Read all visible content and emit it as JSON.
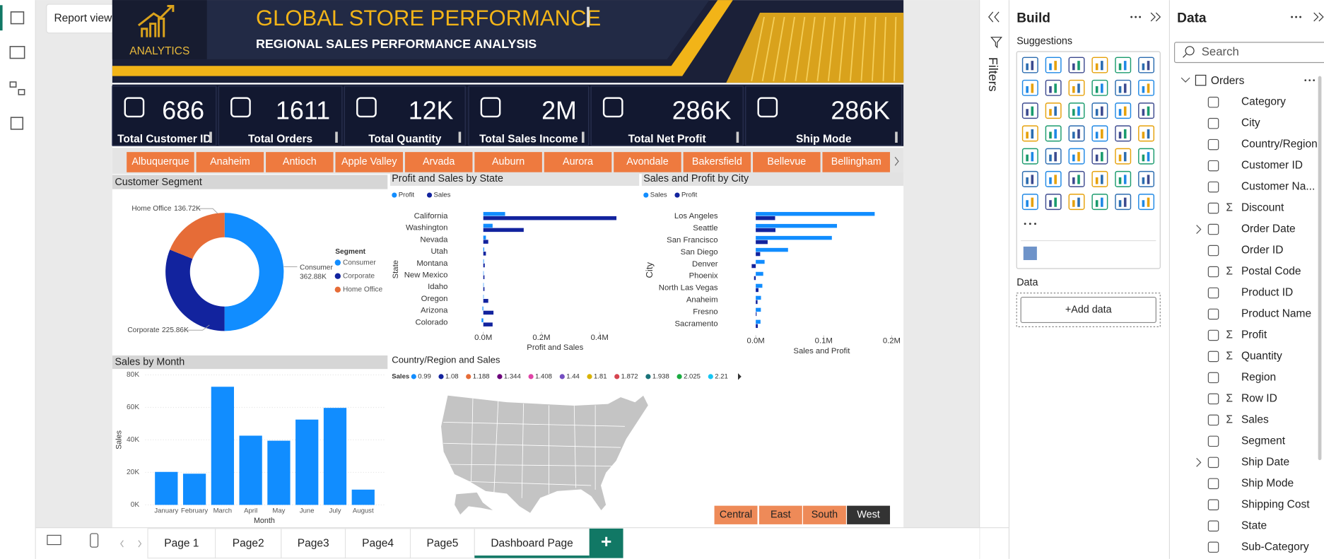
{
  "app": {
    "tooltip": "Report view",
    "filters_label": "Filters"
  },
  "header": {
    "logo_text": "ANALYTICS",
    "title": "GLOBAL STORE PERFORMANCE",
    "subtitle": "REGIONAL SALES PERFORMANCE ANALYSIS"
  },
  "kpis": [
    {
      "value": "686",
      "label": "Total Customer ID"
    },
    {
      "value": "1611",
      "label": "Total Orders"
    },
    {
      "value": "12K",
      "label": "Total Quantity"
    },
    {
      "value": "2M",
      "label": "Total Sales Income"
    },
    {
      "value": "286K",
      "label": "Total Net Profit"
    },
    {
      "value": "286K",
      "label": "Ship Mode"
    }
  ],
  "city_slicer": {
    "items": [
      "Albuquerque",
      "Anaheim",
      "Antioch",
      "Apple Valley",
      "Arvada",
      "Auburn",
      "Aurora",
      "Avondale",
      "Bakersfield",
      "Bellevue",
      "Bellingham"
    ]
  },
  "customer_segment": {
    "type": "donut",
    "title": "Customer Segment",
    "legend_title": "Segment",
    "categories": [
      "Consumer",
      "Corporate",
      "Home Office"
    ],
    "values": [
      362880,
      225860,
      136720
    ],
    "value_labels": [
      "362.88K",
      "225.86K",
      "136.72K"
    ],
    "colors": [
      "#118DFF",
      "#12239E",
      "#E66C37"
    ]
  },
  "profit_sales_by_state": {
    "type": "bar",
    "orientation": "horizontal",
    "title": "Profit and Sales by State",
    "x_label": "Profit and Sales",
    "y_label": "State",
    "categories": [
      "California",
      "Washington",
      "Nevada",
      "Utah",
      "Montana",
      "New Mexico",
      "Idaho",
      "Oregon",
      "Arizona",
      "Colorado"
    ],
    "series": [
      {
        "name": "Profit",
        "color": "#118DFF",
        "values": [
          75000,
          32000,
          9000,
          3000,
          2000,
          1000,
          1000,
          1000,
          -3000,
          -6000
        ]
      },
      {
        "name": "Sales",
        "color": "#12239E",
        "values": [
          458000,
          139000,
          17000,
          9000,
          5000,
          4000,
          4000,
          17000,
          35000,
          32000
        ]
      }
    ],
    "xlim": [
      -6000,
      500000
    ],
    "xticks": [
      {
        "value": 0,
        "label": "0.0M"
      },
      {
        "value": 200000,
        "label": "0.2M"
      },
      {
        "value": 400000,
        "label": "0.4M"
      }
    ]
  },
  "sales_profit_by_city": {
    "type": "bar",
    "orientation": "horizontal",
    "title": "Sales and Profit by City",
    "x_label": "Sales and Profit",
    "y_label": "City",
    "categories": [
      "Los Angeles",
      "Seattle",
      "San Francisco",
      "San Diego",
      "Denver",
      "Phoenix",
      "North Las Vegas",
      "Anaheim",
      "Fresno",
      "Sacramento"
    ],
    "series": [
      {
        "name": "Sales",
        "color": "#118DFF",
        "values": [
          175000,
          119500,
          112000,
          47500,
          13000,
          11000,
          9700,
          7700,
          7500,
          7000
        ]
      },
      {
        "name": "Profit",
        "color": "#12239E",
        "values": [
          28500,
          29000,
          17500,
          6500,
          -6000,
          -2500,
          4000,
          2600,
          1200,
          3000
        ]
      }
    ],
    "xlim": [
      -6000,
      200000
    ],
    "xticks": [
      {
        "value": 0,
        "label": "0.0M"
      },
      {
        "value": 100000,
        "label": "0.1M"
      },
      {
        "value": 200000,
        "label": "0.2M"
      }
    ]
  },
  "sales_by_month": {
    "type": "bar",
    "title": "Sales by Month",
    "x_label": "Month",
    "y_label": "Sales",
    "color": "#118DFF",
    "categories": [
      "January",
      "February",
      "March",
      "April",
      "May",
      "June",
      "July",
      "August"
    ],
    "values": [
      20300,
      19200,
      72700,
      42600,
      39500,
      52500,
      59700,
      9400
    ],
    "ylim": [
      0,
      80000
    ],
    "yticks": [
      {
        "value": 0,
        "label": "0K"
      },
      {
        "value": 20000,
        "label": "20K"
      },
      {
        "value": 40000,
        "label": "40K"
      },
      {
        "value": 60000,
        "label": "60K"
      },
      {
        "value": 80000,
        "label": "80K"
      }
    ],
    "grid": true
  },
  "country_map": {
    "type": "map",
    "title": "Country/Region and Sales",
    "legend_title": "Sales",
    "legend": [
      {
        "label": "0.99",
        "color": "#118DFF"
      },
      {
        "label": "1.08",
        "color": "#12239E"
      },
      {
        "label": "1.188",
        "color": "#E66C37"
      },
      {
        "label": "1.344",
        "color": "#6B007B"
      },
      {
        "label": "1.408",
        "color": "#E044A7"
      },
      {
        "label": "1.44",
        "color": "#744EC2"
      },
      {
        "label": "1.81",
        "color": "#D9B300"
      },
      {
        "label": "1.872",
        "color": "#D64550"
      },
      {
        "label": "1.938",
        "color": "#197278"
      },
      {
        "label": "2.025",
        "color": "#1AAB40"
      },
      {
        "label": "2.21",
        "color": "#15C6F4"
      }
    ]
  },
  "region_slicer": {
    "items": [
      "Central",
      "East",
      "South",
      "West"
    ],
    "selected": "West"
  },
  "pages": {
    "tabs": [
      "Page 1",
      "Page2",
      "Page3",
      "Page4",
      "Page5",
      "Dashboard Page"
    ],
    "active": "Dashboard Page",
    "add": "+"
  },
  "build_pane": {
    "title": "Build",
    "suggestions": "Suggestions",
    "data_label": "Data",
    "add_data": "+Add data"
  },
  "data_pane": {
    "title": "Data",
    "search_placeholder": "Search",
    "table": "Orders",
    "fields": [
      {
        "name": "Category"
      },
      {
        "name": "City"
      },
      {
        "name": "Country/Region"
      },
      {
        "name": "Customer ID"
      },
      {
        "name": "Customer Na..."
      },
      {
        "name": "Discount",
        "icon": "Σ"
      },
      {
        "name": "Order Date",
        "expandable": true
      },
      {
        "name": "Order ID"
      },
      {
        "name": "Postal Code",
        "icon": "Σ"
      },
      {
        "name": "Product ID"
      },
      {
        "name": "Product Name"
      },
      {
        "name": "Profit",
        "icon": "Σ"
      },
      {
        "name": "Quantity",
        "icon": "Σ"
      },
      {
        "name": "Region"
      },
      {
        "name": "Row ID",
        "icon": "Σ"
      },
      {
        "name": "Sales",
        "icon": "Σ"
      },
      {
        "name": "Segment"
      },
      {
        "name": "Ship Date",
        "expandable": true
      },
      {
        "name": "Ship Mode"
      },
      {
        "name": "Shipping Cost"
      },
      {
        "name": "State"
      },
      {
        "name": "Sub-Category"
      }
    ]
  }
}
